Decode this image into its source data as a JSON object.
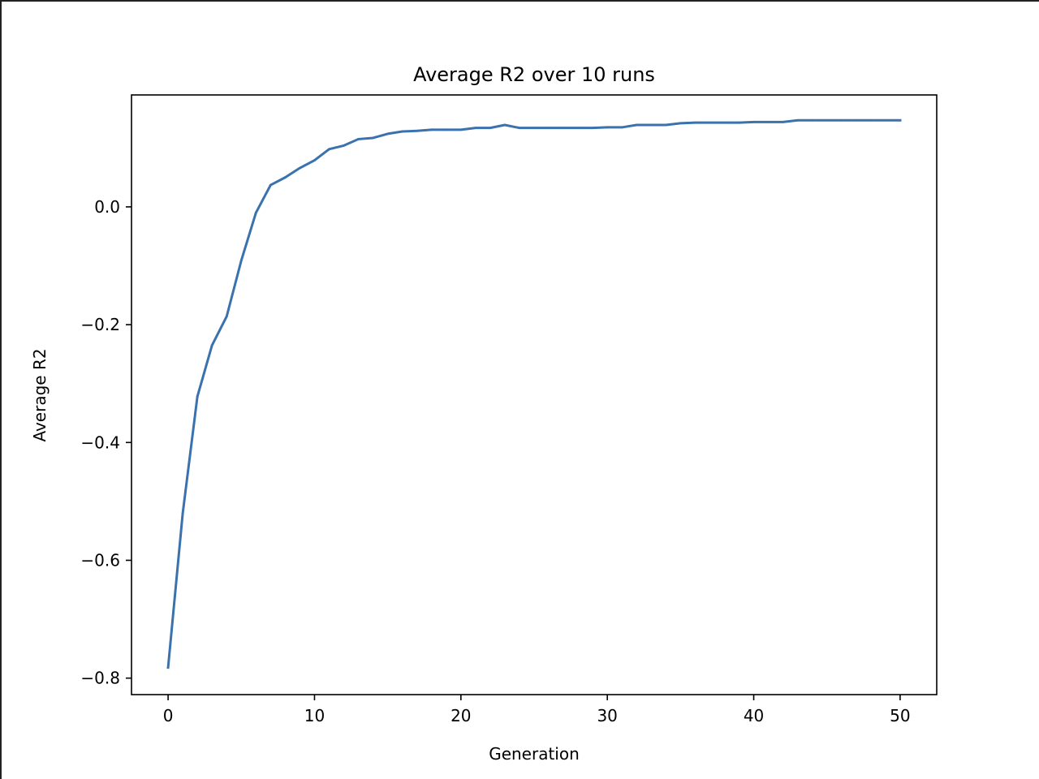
{
  "chart_data": {
    "type": "line",
    "title": "Average R2 over 10 runs",
    "xlabel": "Generation",
    "ylabel": "Average R2",
    "xlim": [
      -2.5,
      52.5
    ],
    "ylim": [
      -0.828,
      0.19
    ],
    "xticks": [
      0,
      10,
      20,
      30,
      40,
      50
    ],
    "yticks": [
      -0.8,
      -0.6,
      -0.4,
      -0.2,
      0.0
    ],
    "xtick_labels": [
      "0",
      "10",
      "20",
      "30",
      "40",
      "50"
    ],
    "ytick_labels": [
      "−0.8",
      "−0.6",
      "−0.4",
      "−0.2",
      "0.0"
    ],
    "grid": false,
    "line_color": "#3a72ad",
    "series": [
      {
        "x": [
          0,
          1,
          2,
          3,
          4,
          5,
          6,
          7,
          8,
          9,
          10,
          11,
          12,
          13,
          14,
          15,
          16,
          17,
          18,
          19,
          20,
          21,
          22,
          23,
          24,
          25,
          26,
          27,
          28,
          29,
          30,
          31,
          32,
          33,
          34,
          35,
          36,
          37,
          38,
          39,
          40,
          41,
          42,
          43,
          44,
          45,
          46,
          47,
          48,
          49,
          50
        ],
        "values": [
          -0.782,
          -0.52,
          -0.322,
          -0.235,
          -0.186,
          -0.091,
          -0.01,
          0.037,
          0.05,
          0.066,
          0.079,
          0.098,
          0.104,
          0.115,
          0.117,
          0.124,
          0.128,
          0.129,
          0.131,
          0.131,
          0.131,
          0.134,
          0.134,
          0.139,
          0.134,
          0.134,
          0.134,
          0.134,
          0.134,
          0.134,
          0.135,
          0.135,
          0.139,
          0.139,
          0.139,
          0.142,
          0.143,
          0.143,
          0.143,
          0.143,
          0.144,
          0.144,
          0.144,
          0.147,
          0.147,
          0.147,
          0.147,
          0.147,
          0.147,
          0.147,
          0.147
        ]
      }
    ]
  }
}
